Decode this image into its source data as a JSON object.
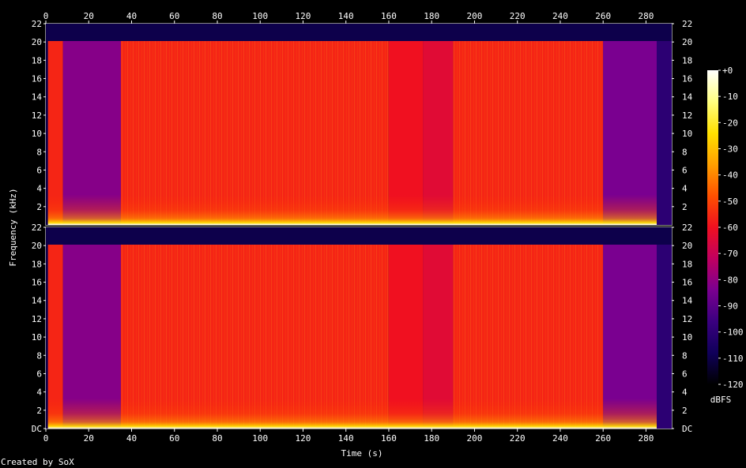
{
  "chart_data": {
    "type": "heatmap",
    "title": "",
    "xlabel": "Time (s)",
    "ylabel": "Frequency (kHz)",
    "credit": "Created by SoX",
    "x_ticks": [
      "0",
      "20",
      "40",
      "60",
      "80",
      "100",
      "120",
      "140",
      "160",
      "180",
      "200",
      "220",
      "240",
      "260",
      "280"
    ],
    "x_tick_values": [
      0,
      20,
      40,
      60,
      80,
      100,
      120,
      140,
      160,
      180,
      200,
      220,
      240,
      260,
      280
    ],
    "xlim": [
      0,
      292
    ],
    "y_ticks_top": [
      "2",
      "4",
      "6",
      "8",
      "10",
      "12",
      "14",
      "16",
      "18",
      "20",
      "22"
    ],
    "y_ticks_bottom": [
      "DC",
      "2",
      "4",
      "6",
      "8",
      "10",
      "12",
      "14",
      "16",
      "18",
      "20",
      "22"
    ],
    "y_tick_values": [
      0,
      2,
      4,
      6,
      8,
      10,
      12,
      14,
      16,
      18,
      20,
      22
    ],
    "ylim": [
      0,
      22
    ],
    "channels": 2,
    "colorbar": {
      "label": "dBFS",
      "ticks": [
        "+0",
        "-10",
        "-20",
        "-30",
        "-40",
        "-50",
        "-60",
        "-70",
        "-80",
        "-90",
        "-100",
        "-110",
        "-120"
      ],
      "tick_values": [
        0,
        -10,
        -20,
        -30,
        -40,
        -50,
        -60,
        -70,
        -80,
        -90,
        -100,
        -110,
        -120
      ],
      "range": [
        -120,
        0
      ],
      "stops": [
        "#ffffff",
        "#ffff80",
        "#ffe000",
        "#ffa000",
        "#ff5000",
        "#f01020",
        "#c00060",
        "#7a0090",
        "#3a0080",
        "#10005a",
        "#000000"
      ]
    },
    "segments": [
      {
        "t0": 0,
        "t1": 1,
        "level": -120,
        "cutoff_khz": 0
      },
      {
        "t0": 1,
        "t1": 8,
        "level": -56,
        "cutoff_khz": 20.1
      },
      {
        "t0": 8,
        "t1": 35,
        "level": -82,
        "cutoff_khz": 20.1
      },
      {
        "t0": 35,
        "t1": 160,
        "level": -56,
        "cutoff_khz": 20.1
      },
      {
        "t0": 160,
        "t1": 176,
        "level": -60,
        "cutoff_khz": 20.1
      },
      {
        "t0": 176,
        "t1": 190,
        "level": -64,
        "cutoff_khz": 20.1
      },
      {
        "t0": 190,
        "t1": 260,
        "level": -56,
        "cutoff_khz": 20.1
      },
      {
        "t0": 260,
        "t1": 285,
        "level": -84,
        "cutoff_khz": 20.1
      },
      {
        "t0": 285,
        "t1": 292,
        "level": -100,
        "cutoff_khz": 20.1
      }
    ],
    "low_frequency_level": -12,
    "above_cutoff_level": -110
  }
}
